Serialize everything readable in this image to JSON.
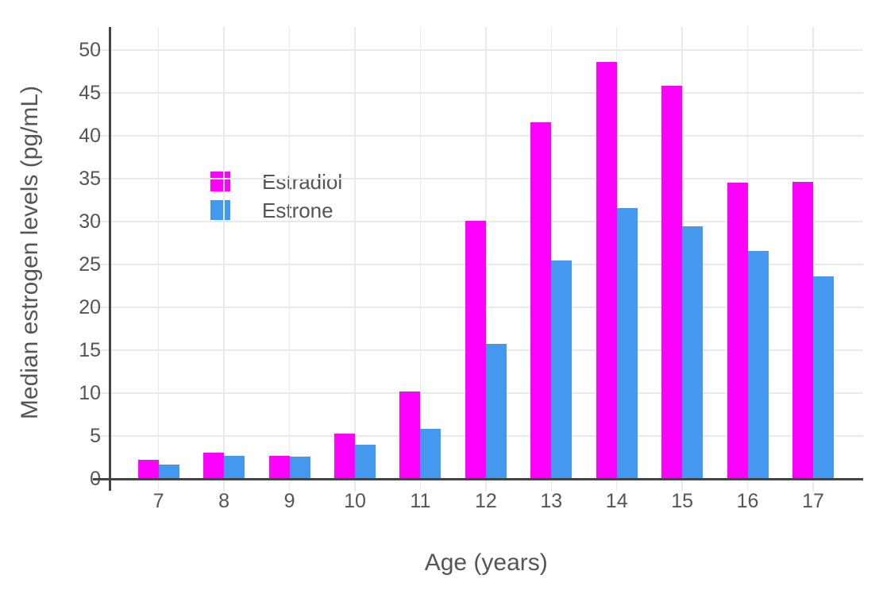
{
  "chart_data": {
    "type": "bar",
    "title": "",
    "categories": [
      7,
      8,
      9,
      10,
      11,
      12,
      13,
      14,
      15,
      16,
      17
    ],
    "series": [
      {
        "name": "Estradiol",
        "color": "#FF00FF",
        "values": [
          2.2,
          3.1,
          2.7,
          5.3,
          10.2,
          30.1,
          41.6,
          48.6,
          45.8,
          34.5,
          34.6
        ]
      },
      {
        "name": "Estrone",
        "color": "#4498EE",
        "values": [
          1.7,
          2.7,
          2.6,
          4.0,
          5.8,
          15.7,
          25.5,
          31.6,
          29.4,
          26.6,
          23.6
        ]
      }
    ],
    "xlabel": "Age (years)",
    "ylabel": "Median estrogen levels (pg/mL)",
    "ylim": [
      0,
      52.7
    ],
    "yticks": [
      0,
      5,
      10,
      15,
      20,
      25,
      30,
      35,
      40,
      45,
      50
    ],
    "grid": true,
    "legend_position": "inside-top-left",
    "style": {
      "grid_color": "#E9E9E9",
      "axis_color": "#444444",
      "text_color": "#555555",
      "background": "#FFFFFF"
    }
  }
}
